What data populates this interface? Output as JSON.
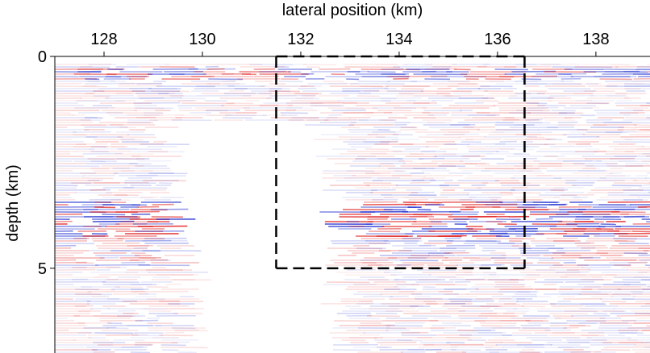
{
  "chart_data": {
    "type": "image",
    "xlabel": "lateral position (km)",
    "ylabel": "depth (km)",
    "xlim": [
      127,
      139.1
    ],
    "xticks": [
      128,
      130,
      132,
      134,
      136,
      138
    ],
    "ylim": [
      0,
      7
    ],
    "yticks": [
      0,
      5
    ],
    "box": {
      "x": [
        131.5,
        136.55
      ],
      "y": [
        0,
        5
      ]
    }
  }
}
